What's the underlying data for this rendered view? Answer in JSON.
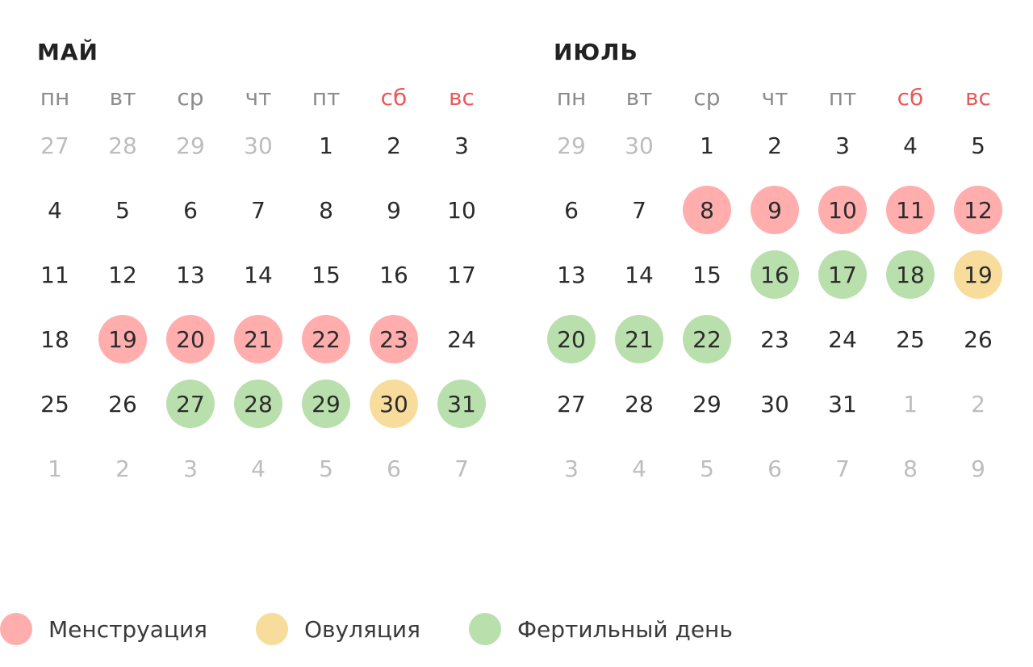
{
  "weekdays": [
    "пн",
    "вт",
    "ср",
    "чт",
    "пт",
    "сб",
    "вс"
  ],
  "colors": {
    "menstruation": "#ffadad",
    "ovulation": "#f7dc9c",
    "fertile": "#b9dfad",
    "weekend_header": "#e85a5a",
    "other_month": "#bdbdbd"
  },
  "months": [
    {
      "title": "МАЙ",
      "days": [
        {
          "d": "27",
          "t": "other"
        },
        {
          "d": "28",
          "t": "other"
        },
        {
          "d": "29",
          "t": "other"
        },
        {
          "d": "30",
          "t": "other"
        },
        {
          "d": "1",
          "t": ""
        },
        {
          "d": "2",
          "t": ""
        },
        {
          "d": "3",
          "t": ""
        },
        {
          "d": "4",
          "t": ""
        },
        {
          "d": "5",
          "t": ""
        },
        {
          "d": "6",
          "t": ""
        },
        {
          "d": "7",
          "t": ""
        },
        {
          "d": "8",
          "t": ""
        },
        {
          "d": "9",
          "t": ""
        },
        {
          "d": "10",
          "t": ""
        },
        {
          "d": "11",
          "t": ""
        },
        {
          "d": "12",
          "t": ""
        },
        {
          "d": "13",
          "t": ""
        },
        {
          "d": "14",
          "t": ""
        },
        {
          "d": "15",
          "t": ""
        },
        {
          "d": "16",
          "t": ""
        },
        {
          "d": "17",
          "t": ""
        },
        {
          "d": "18",
          "t": ""
        },
        {
          "d": "19",
          "t": "menstruation"
        },
        {
          "d": "20",
          "t": "menstruation"
        },
        {
          "d": "21",
          "t": "menstruation"
        },
        {
          "d": "22",
          "t": "menstruation"
        },
        {
          "d": "23",
          "t": "menstruation"
        },
        {
          "d": "24",
          "t": ""
        },
        {
          "d": "25",
          "t": ""
        },
        {
          "d": "26",
          "t": ""
        },
        {
          "d": "27",
          "t": "fertile"
        },
        {
          "d": "28",
          "t": "fertile"
        },
        {
          "d": "29",
          "t": "fertile"
        },
        {
          "d": "30",
          "t": "ovulation"
        },
        {
          "d": "31",
          "t": "fertile"
        },
        {
          "d": "1",
          "t": "other"
        },
        {
          "d": "2",
          "t": "other"
        },
        {
          "d": "3",
          "t": "other"
        },
        {
          "d": "4",
          "t": "other"
        },
        {
          "d": "5",
          "t": "other"
        },
        {
          "d": "6",
          "t": "other"
        },
        {
          "d": "7",
          "t": "other"
        }
      ]
    },
    {
      "title": "ИЮЛЬ",
      "days": [
        {
          "d": "29",
          "t": "other"
        },
        {
          "d": "30",
          "t": "other"
        },
        {
          "d": "1",
          "t": ""
        },
        {
          "d": "2",
          "t": ""
        },
        {
          "d": "3",
          "t": ""
        },
        {
          "d": "4",
          "t": ""
        },
        {
          "d": "5",
          "t": ""
        },
        {
          "d": "6",
          "t": ""
        },
        {
          "d": "7",
          "t": ""
        },
        {
          "d": "8",
          "t": "menstruation"
        },
        {
          "d": "9",
          "t": "menstruation"
        },
        {
          "d": "10",
          "t": "menstruation"
        },
        {
          "d": "11",
          "t": "menstruation"
        },
        {
          "d": "12",
          "t": "menstruation"
        },
        {
          "d": "13",
          "t": ""
        },
        {
          "d": "14",
          "t": ""
        },
        {
          "d": "15",
          "t": ""
        },
        {
          "d": "16",
          "t": "fertile"
        },
        {
          "d": "17",
          "t": "fertile"
        },
        {
          "d": "18",
          "t": "fertile"
        },
        {
          "d": "19",
          "t": "ovulation"
        },
        {
          "d": "20",
          "t": "fertile"
        },
        {
          "d": "21",
          "t": "fertile"
        },
        {
          "d": "22",
          "t": "fertile"
        },
        {
          "d": "23",
          "t": ""
        },
        {
          "d": "24",
          "t": ""
        },
        {
          "d": "25",
          "t": ""
        },
        {
          "d": "26",
          "t": ""
        },
        {
          "d": "27",
          "t": ""
        },
        {
          "d": "28",
          "t": ""
        },
        {
          "d": "29",
          "t": ""
        },
        {
          "d": "30",
          "t": ""
        },
        {
          "d": "31",
          "t": ""
        },
        {
          "d": "1",
          "t": "other"
        },
        {
          "d": "2",
          "t": "other"
        },
        {
          "d": "3",
          "t": "other"
        },
        {
          "d": "4",
          "t": "other"
        },
        {
          "d": "5",
          "t": "other"
        },
        {
          "d": "6",
          "t": "other"
        },
        {
          "d": "7",
          "t": "other"
        },
        {
          "d": "8",
          "t": "other"
        },
        {
          "d": "9",
          "t": "other"
        }
      ]
    }
  ],
  "legend": [
    {
      "label": "Менструация",
      "type": "menstruation"
    },
    {
      "label": "Овуляция",
      "type": "ovulation"
    },
    {
      "label": "Фертильный день",
      "type": "fertile"
    }
  ]
}
